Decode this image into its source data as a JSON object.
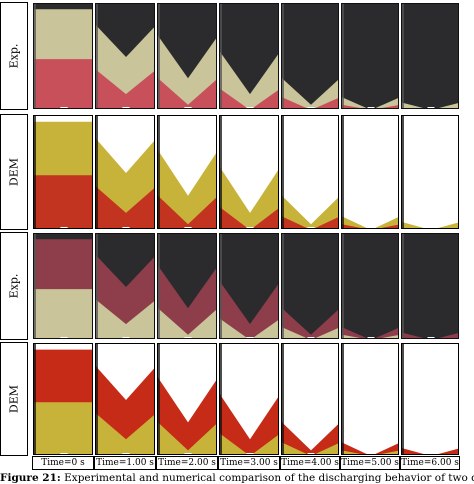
{
  "rows": [
    {
      "label": "Exp.",
      "kind": "exp",
      "top_color": "#2b2b2d",
      "mid_color": "#c9c49a",
      "bot_color": "#c8505a"
    },
    {
      "label": "DEM",
      "kind": "dem",
      "top_color": "#ffffff",
      "mid_color": "#c8b33a",
      "bot_color": "#c23320"
    },
    {
      "label": "Exp.",
      "kind": "exp",
      "top_color": "#2b2b2d",
      "mid_color": "#8e3e4a",
      "bot_color": "#c9c49a"
    },
    {
      "label": "DEM",
      "kind": "dem",
      "top_color": "#ffffff",
      "mid_color": "#c62b17",
      "bot_color": "#c8b33a"
    }
  ],
  "times": [
    "Time=0 s",
    "Time=1.00 s",
    "Time=2.00 s",
    "Time=3.00 s",
    "Time=4.00 s",
    "Time=5.00 s",
    "Time=6.00 s"
  ],
  "caption": {
    "label": "Figure 21:",
    "text": "Experimental and numerical comparison of the discharging behavior of two diffe"
  }
}
